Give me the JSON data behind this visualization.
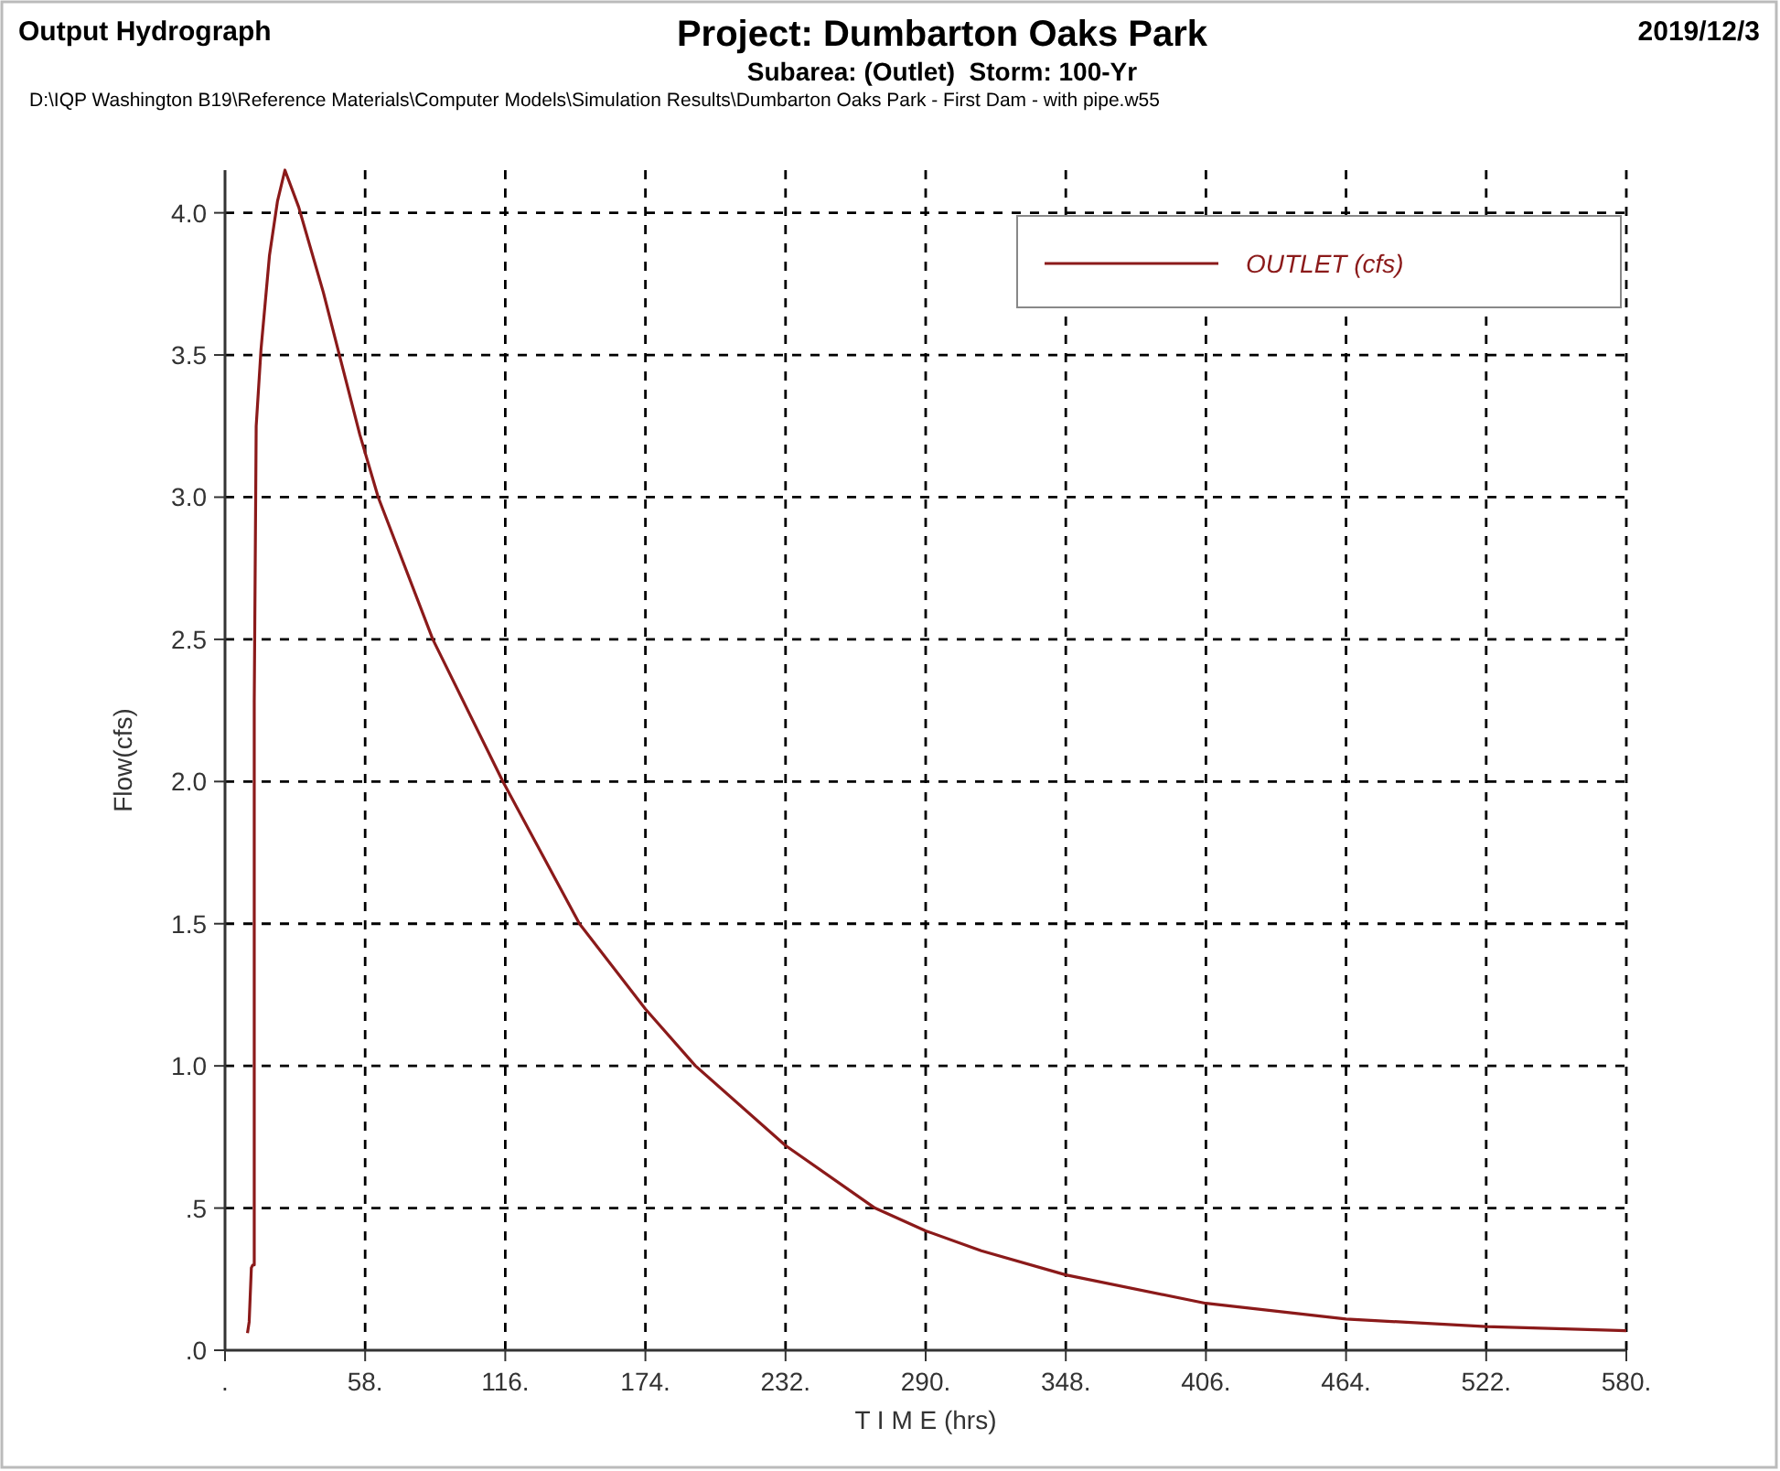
{
  "chart_data": {
    "type": "line",
    "title": "Project: Dumbarton Oaks Park",
    "subtitle": "Subarea: (Outlet)  Storm: 100-Yr",
    "annotations": [
      "Output Hydrograph",
      "2019/12/3",
      "D:\\IQP Washington B19\\Reference Materials\\Computer Models\\Simulation Results\\Dumbarton Oaks Park - First Dam - with pipe.w55"
    ],
    "xlabel": "T I M E (hrs)",
    "ylabel": "Flow(cfs)",
    "series": [
      {
        "name": "OUTLET (cfs)",
        "color": "#8b1a1a",
        "x": [
          9.3,
          10,
          10.9,
          11.5,
          12.1,
          12.1,
          12.9,
          14.9,
          18.4,
          21.7,
          24.8,
          30.5,
          40.7,
          55.8,
          63.4,
          86,
          115,
          146.7,
          174,
          194.7,
          232,
          269,
          290,
          313,
          348,
          406,
          464,
          522,
          580
        ],
        "values": [
          0.06,
          0.1,
          0.29,
          0.3,
          0.3,
          2.28,
          3.25,
          3.52,
          3.85,
          4.04,
          4.15,
          4.02,
          3.72,
          3.22,
          3.0,
          2.5,
          2.0,
          1.5,
          1.2,
          1.0,
          0.72,
          0.5,
          0.42,
          0.35,
          0.265,
          0.165,
          0.11,
          0.083,
          0.069
        ]
      }
    ],
    "xlim": [
      0,
      580
    ],
    "ylim": [
      0,
      4.15
    ],
    "xticks": [
      {
        "value": 0,
        "label": "."
      },
      {
        "value": 58,
        "label": "58."
      },
      {
        "value": 116,
        "label": "116."
      },
      {
        "value": 174,
        "label": "174."
      },
      {
        "value": 232,
        "label": "232."
      },
      {
        "value": 290,
        "label": "290."
      },
      {
        "value": 348,
        "label": "348."
      },
      {
        "value": 406,
        "label": "406."
      },
      {
        "value": 464,
        "label": "464."
      },
      {
        "value": 522,
        "label": "522."
      },
      {
        "value": 580,
        "label": "580."
      }
    ],
    "yticks": [
      {
        "value": 0,
        "label": ".0"
      },
      {
        "value": 0.5,
        "label": ".5"
      },
      {
        "value": 1,
        "label": "1.0"
      },
      {
        "value": 1.5,
        "label": "1.5"
      },
      {
        "value": 2,
        "label": "2.0"
      },
      {
        "value": 2.5,
        "label": "2.5"
      },
      {
        "value": 3,
        "label": "3.0"
      },
      {
        "value": 3.5,
        "label": "3.5"
      },
      {
        "value": 4,
        "label": "4.0"
      }
    ],
    "grid": true,
    "legend": "top right",
    "marker": "none",
    "line_style": "solid"
  }
}
